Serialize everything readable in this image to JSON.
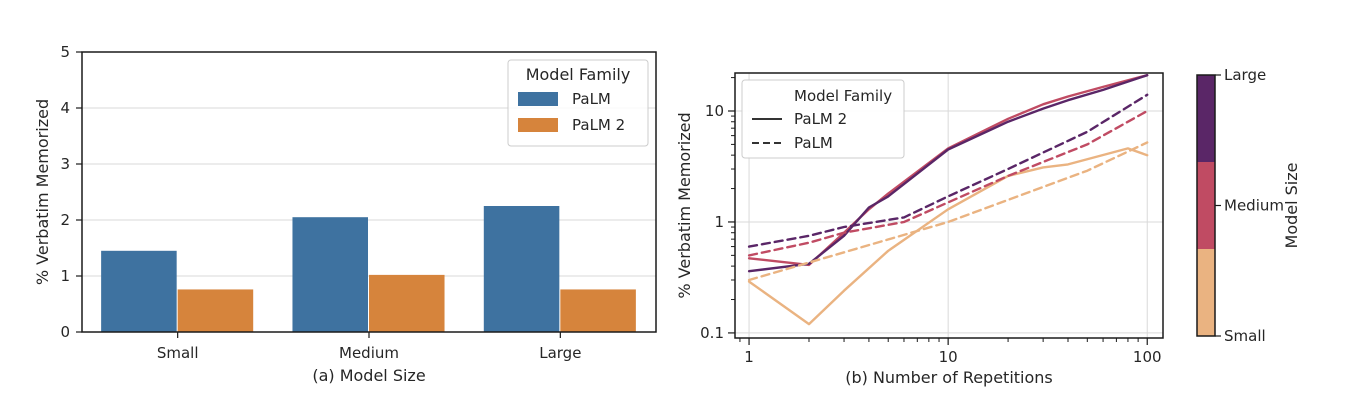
{
  "chart_data": [
    {
      "type": "bar",
      "title": "",
      "xlabel": "(a) Model Size",
      "ylabel": "% Verbatim Memorized",
      "categories": [
        "Small",
        "Medium",
        "Large"
      ],
      "ylim": [
        0,
        5
      ],
      "yticks": [
        "0",
        "1",
        "2",
        "3",
        "4",
        "5"
      ],
      "grid": "horizontal",
      "legend": {
        "title": "Model Family",
        "placement": "top-right"
      },
      "series": [
        {
          "name": "PaLM",
          "color": "#3e72a0",
          "values": [
            1.45,
            2.05,
            2.25
          ]
        },
        {
          "name": "PaLM 2",
          "color": "#d6843c",
          "values": [
            0.76,
            1.02,
            0.76
          ]
        }
      ]
    },
    {
      "type": "line",
      "title": "",
      "xlabel": "(b) Number of Repetitions",
      "ylabel": "% Verbatim Memorized",
      "xscale": "log",
      "yscale": "log",
      "xlim": [
        0.85,
        120
      ],
      "ylim": [
        0.09,
        22
      ],
      "xticks": [
        "1",
        "10",
        "100"
      ],
      "yticks": [
        "0.1",
        "1",
        "10"
      ],
      "grid": "both",
      "legend": {
        "title": "Model Family",
        "placement": "top-left",
        "entries": [
          {
            "label": "PaLM 2",
            "style": "solid"
          },
          {
            "label": "PaLM",
            "style": "dashed"
          }
        ]
      },
      "colorbar": {
        "label": "Model Size",
        "ticks": [
          "Large",
          "Medium",
          "Small"
        ],
        "colors": {
          "Small": "#eab381",
          "Medium": "#c04b63",
          "Large": "#5a2667"
        }
      },
      "series": [
        {
          "family": "PaLM 2",
          "size": "Small",
          "style": "solid",
          "color": "#eab381",
          "x": [
            1,
            2,
            3,
            5,
            10,
            20,
            30,
            40,
            80,
            100
          ],
          "y": [
            0.29,
            0.12,
            0.24,
            0.55,
            1.3,
            2.6,
            3.1,
            3.3,
            4.6,
            4.0
          ]
        },
        {
          "family": "PaLM 2",
          "size": "Medium",
          "style": "solid",
          "color": "#c04b63",
          "x": [
            1,
            2,
            3,
            4,
            5,
            10,
            20,
            30,
            40,
            60,
            100
          ],
          "y": [
            0.47,
            0.41,
            0.8,
            1.3,
            1.8,
            4.6,
            8.5,
            11.5,
            13.5,
            16.5,
            21
          ]
        },
        {
          "family": "PaLM 2",
          "size": "Large",
          "style": "solid",
          "color": "#5a2667",
          "x": [
            1,
            2,
            3,
            4,
            5,
            10,
            20,
            30,
            40,
            60,
            100
          ],
          "y": [
            0.36,
            0.42,
            0.75,
            1.35,
            1.7,
            4.5,
            8.0,
            10.5,
            12.5,
            15.5,
            21
          ]
        },
        {
          "family": "PaLM",
          "size": "Small",
          "style": "dashed",
          "color": "#eab381",
          "x": [
            1,
            10,
            50,
            100
          ],
          "y": [
            0.3,
            1.0,
            2.9,
            5.2
          ]
        },
        {
          "family": "PaLM",
          "size": "Medium",
          "style": "dashed",
          "color": "#c04b63",
          "x": [
            1,
            2,
            3,
            6,
            10,
            20,
            50,
            100
          ],
          "y": [
            0.5,
            0.65,
            0.8,
            1.0,
            1.5,
            2.6,
            5.0,
            10.0
          ]
        },
        {
          "family": "PaLM",
          "size": "Large",
          "style": "dashed",
          "color": "#5a2667",
          "x": [
            1,
            2,
            3,
            6,
            10,
            20,
            50,
            100
          ],
          "y": [
            0.6,
            0.75,
            0.9,
            1.1,
            1.7,
            3.0,
            6.5,
            14.0
          ]
        }
      ]
    }
  ]
}
